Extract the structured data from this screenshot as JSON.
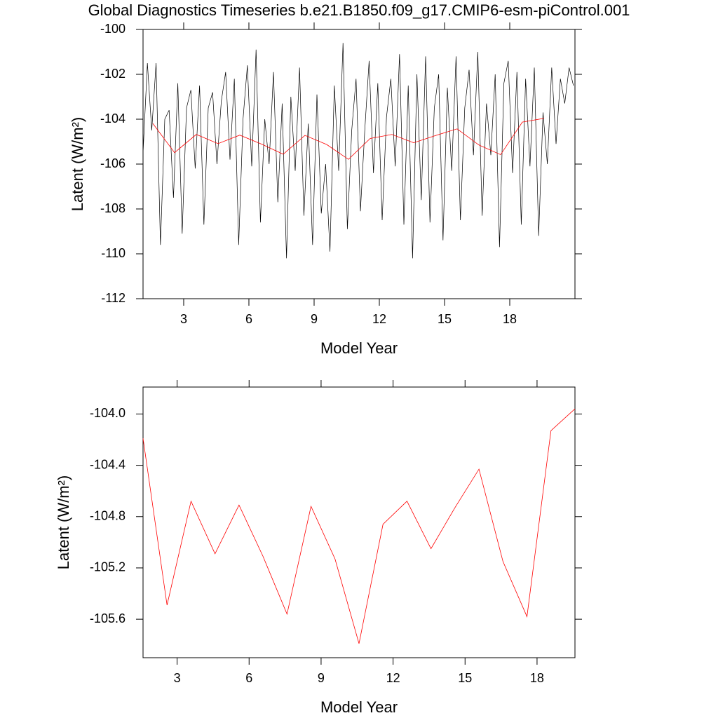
{
  "chart_data": [
    {
      "type": "line",
      "title": "Global Diagnostics Timeseries b.e21.B1850.f09_g17.CMIP6-esm-piControl.001",
      "xlabel": "Model Year",
      "ylabel": "Latent (W/m²)",
      "xlim": [
        1.13,
        21
      ],
      "xticks": [
        3,
        6,
        9,
        12,
        15,
        18
      ],
      "ylim": [
        -112,
        -100
      ],
      "yticks": [
        -112,
        -110,
        -108,
        -106,
        -104,
        -102,
        -100
      ],
      "series": [
        {
          "color": "#000000",
          "x": [
            1.13,
            1.33,
            1.53,
            1.73,
            1.93,
            2.13,
            2.33,
            2.53,
            2.73,
            2.93,
            3.13,
            3.33,
            3.53,
            3.73,
            3.93,
            4.13,
            4.33,
            4.53,
            4.73,
            4.93,
            5.13,
            5.33,
            5.53,
            5.73,
            5.93,
            6.13,
            6.33,
            6.53,
            6.73,
            6.93,
            7.13,
            7.33,
            7.53,
            7.73,
            7.93,
            8.13,
            8.33,
            8.53,
            8.73,
            8.93,
            9.13,
            9.33,
            9.53,
            9.73,
            9.93,
            10.13,
            10.33,
            10.53,
            10.73,
            10.93,
            11.13,
            11.33,
            11.53,
            11.73,
            11.93,
            12.13,
            12.33,
            12.53,
            12.73,
            12.93,
            13.13,
            13.33,
            13.53,
            13.73,
            13.93,
            14.13,
            14.33,
            14.53,
            14.73,
            14.93,
            15.13,
            15.33,
            15.53,
            15.73,
            15.93,
            16.13,
            16.33,
            16.53,
            16.73,
            16.93,
            17.13,
            17.33,
            17.53,
            17.73,
            17.93,
            18.13,
            18.33,
            18.53,
            18.73,
            18.93,
            19.13,
            19.33,
            19.53,
            19.73,
            19.93,
            20.13,
            20.33,
            20.53,
            20.73,
            20.93
          ],
          "values": [
            -105.5,
            -101.5,
            -104.5,
            -101.5,
            -109.6,
            -104.0,
            -103.6,
            -107.5,
            -102.4,
            -109.1,
            -103.5,
            -102.7,
            -106.2,
            -102.5,
            -108.7,
            -103.5,
            -102.8,
            -106.0,
            -103.2,
            -101.9,
            -105.8,
            -102.2,
            -109.6,
            -104.0,
            -101.6,
            -106.1,
            -100.9,
            -108.6,
            -104.0,
            -106.0,
            -101.9,
            -107.7,
            -103.3,
            -110.2,
            -103.0,
            -106.3,
            -101.7,
            -108.3,
            -104.2,
            -109.6,
            -102.9,
            -108.2,
            -106.0,
            -109.9,
            -102.5,
            -106.3,
            -100.6,
            -108.9,
            -104.5,
            -102.2,
            -108.1,
            -104.5,
            -101.4,
            -106.4,
            -102.4,
            -108.5,
            -103.9,
            -102.2,
            -106.1,
            -101.1,
            -108.7,
            -102.5,
            -110.2,
            -102.0,
            -107.6,
            -101.2,
            -108.6,
            -103.5,
            -102.0,
            -109.4,
            -102.6,
            -106.3,
            -101.2,
            -108.5,
            -103.5,
            -101.8,
            -105.6,
            -101.0,
            -108.3,
            -103.3,
            -105.6,
            -102.0,
            -109.7,
            -102.4,
            -101.4,
            -106.4,
            -101.9,
            -108.7,
            -102.2,
            -106.1,
            -101.7,
            -109.2,
            -103.7,
            -106.0,
            -101.7,
            -105.1,
            -102.2,
            -103.3,
            -101.7,
            -102.5
          ]
        },
        {
          "color": "#ff0000",
          "x": [
            1.58,
            2.58,
            3.58,
            4.58,
            5.58,
            6.58,
            7.58,
            8.58,
            9.58,
            10.58,
            11.58,
            12.58,
            13.58,
            14.58,
            15.58,
            16.58,
            17.58,
            18.58,
            19.58
          ],
          "values": [
            -104.19,
            -105.49,
            -104.68,
            -105.09,
            -104.71,
            -105.11,
            -105.56,
            -104.72,
            -105.13,
            -105.79,
            -104.86,
            -104.68,
            -105.05,
            -104.73,
            -104.43,
            -105.15,
            -105.58,
            -104.13,
            -103.96
          ]
        }
      ]
    },
    {
      "type": "line",
      "xlabel": "Model Year",
      "ylabel": "Latent (W/m²)",
      "xlim": [
        1.58,
        19.58
      ],
      "xticks": [
        3,
        6,
        9,
        12,
        15,
        18
      ],
      "ylim": [
        -105.9,
        -103.79
      ],
      "yticks": [
        {
          "value": -104,
          "label": "-104.0"
        },
        -104.4,
        -104.8,
        -105.2,
        -105.6
      ],
      "series": [
        {
          "color": "#ff0000",
          "x": [
            1.58,
            2.58,
            3.58,
            4.58,
            5.58,
            6.58,
            7.58,
            8.58,
            9.58,
            10.58,
            11.58,
            12.58,
            13.58,
            14.58,
            15.58,
            16.58,
            17.58,
            18.58,
            19.58
          ],
          "values": [
            -104.19,
            -105.49,
            -104.68,
            -105.09,
            -104.71,
            -105.11,
            -105.56,
            -104.72,
            -105.13,
            -105.79,
            -104.86,
            -104.68,
            -105.05,
            -104.73,
            -104.43,
            -105.15,
            -105.58,
            -104.13,
            -103.96
          ]
        }
      ]
    }
  ]
}
